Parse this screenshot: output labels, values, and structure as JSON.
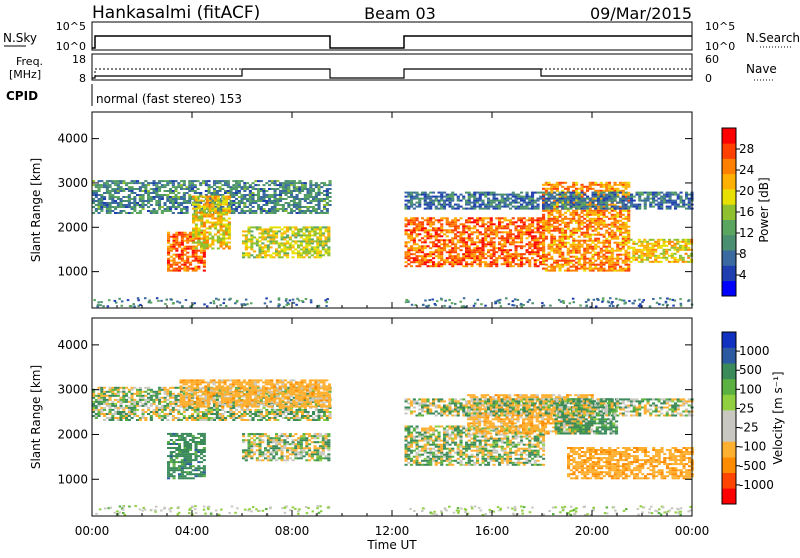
{
  "header": {
    "station": "Hankasalmi (fitACF)",
    "beam": "Beam 03",
    "date": "09/Mar/2015"
  },
  "top_panels": {
    "nsky_label": "N.Sky",
    "nsky_ticks": [
      "10^5",
      "10^0"
    ],
    "nsearch_label": "N.Search",
    "nsearch_ticks": [
      "10^5",
      "10^0"
    ],
    "freq_label_1": "Freq.",
    "freq_label_2": "[MHz]",
    "freq_ticks": [
      "18",
      "8"
    ],
    "nave_label": "Nave",
    "nave_ticks": [
      "60",
      "0"
    ],
    "cpid_label": "CPID",
    "cpid_text": "normal (fast stereo) 153"
  },
  "colorbars": {
    "power": {
      "label": "Power [dB]",
      "ticks": [
        "28",
        "24",
        "20",
        "16",
        "12",
        "8",
        "4"
      ],
      "colors": [
        "#0000ff",
        "#1f3fb0",
        "#3a6aa0",
        "#4a8f70",
        "#5aa560",
        "#8ec030",
        "#e8e000",
        "#ffb000",
        "#ff8000",
        "#ff4000",
        "#ff0000"
      ]
    },
    "velocity": {
      "label": "Velocity [m s⁻¹]",
      "ticks": [
        "1000",
        "500",
        "100",
        "25",
        "-25",
        "-100",
        "-500",
        "-1000"
      ],
      "colors": [
        "#ff0000",
        "#ff4500",
        "#ff8c00",
        "#ffb030",
        "#c8c8c0",
        "#c8c8c0",
        "#90d040",
        "#5ab040",
        "#3a8a5a",
        "#2c5aa0",
        "#1030c0"
      ]
    }
  },
  "axes": {
    "ylabel": "Slant Range [km]",
    "xlabel": "Time UT",
    "xticks": [
      "00:00",
      "04:00",
      "08:00",
      "12:00",
      "16:00",
      "20:00",
      "00:00"
    ],
    "yticks": [
      "1000",
      "2000",
      "3000",
      "4000"
    ]
  },
  "chart_data": [
    {
      "type": "heatmap",
      "name": "Power",
      "x_range_hours": [
        0,
        24
      ],
      "y_range_km": [
        180,
        4600
      ],
      "data_gap_hours": [
        9.5,
        12.5
      ],
      "regions": [
        {
          "t": [
            0.0,
            9.5
          ],
          "km": [
            2300,
            3050
          ],
          "level_db": 10
        },
        {
          "t": [
            3.0,
            4.5
          ],
          "km": [
            1000,
            1900
          ],
          "level_db": 26
        },
        {
          "t": [
            4.0,
            5.5
          ],
          "km": [
            1500,
            2700
          ],
          "level_db": 20
        },
        {
          "t": [
            6.0,
            9.5
          ],
          "km": [
            1300,
            2000
          ],
          "level_db": 18
        },
        {
          "t": [
            12.5,
            18.0
          ],
          "km": [
            1100,
            2200
          ],
          "level_db": 26
        },
        {
          "t": [
            18.0,
            21.5
          ],
          "km": [
            1000,
            3000
          ],
          "level_db": 24
        },
        {
          "t": [
            21.5,
            24.0
          ],
          "km": [
            1200,
            1700
          ],
          "level_db": 20
        },
        {
          "t": [
            12.5,
            24.0
          ],
          "km": [
            2400,
            2800
          ],
          "level_db": 8
        }
      ]
    },
    {
      "type": "heatmap",
      "name": "Velocity",
      "x_range_hours": [
        0,
        24
      ],
      "y_range_km": [
        180,
        4600
      ],
      "data_gap_hours": [
        9.5,
        12.5
      ],
      "regions": [
        {
          "t": [
            0.0,
            9.5
          ],
          "km": [
            2300,
            3050
          ],
          "velocity_ms": 0
        },
        {
          "t": [
            3.0,
            4.5
          ],
          "km": [
            1000,
            2000
          ],
          "velocity_ms": 300
        },
        {
          "t": [
            3.5,
            9.5
          ],
          "km": [
            2600,
            3200
          ],
          "velocity_ms": -300
        },
        {
          "t": [
            6.0,
            9.5
          ],
          "km": [
            1400,
            2000
          ],
          "velocity_ms": 0
        },
        {
          "t": [
            12.5,
            18.0
          ],
          "km": [
            1300,
            2200
          ],
          "velocity_ms": 0
        },
        {
          "t": [
            15.0,
            20.0
          ],
          "km": [
            2000,
            2900
          ],
          "velocity_ms": -300
        },
        {
          "t": [
            18.5,
            21.0
          ],
          "km": [
            2000,
            2800
          ],
          "velocity_ms": 200
        },
        {
          "t": [
            19.0,
            24.0
          ],
          "km": [
            1000,
            1700
          ],
          "velocity_ms": -400
        },
        {
          "t": [
            12.5,
            24.0
          ],
          "km": [
            2400,
            2800
          ],
          "velocity_ms": 0
        }
      ]
    }
  ]
}
